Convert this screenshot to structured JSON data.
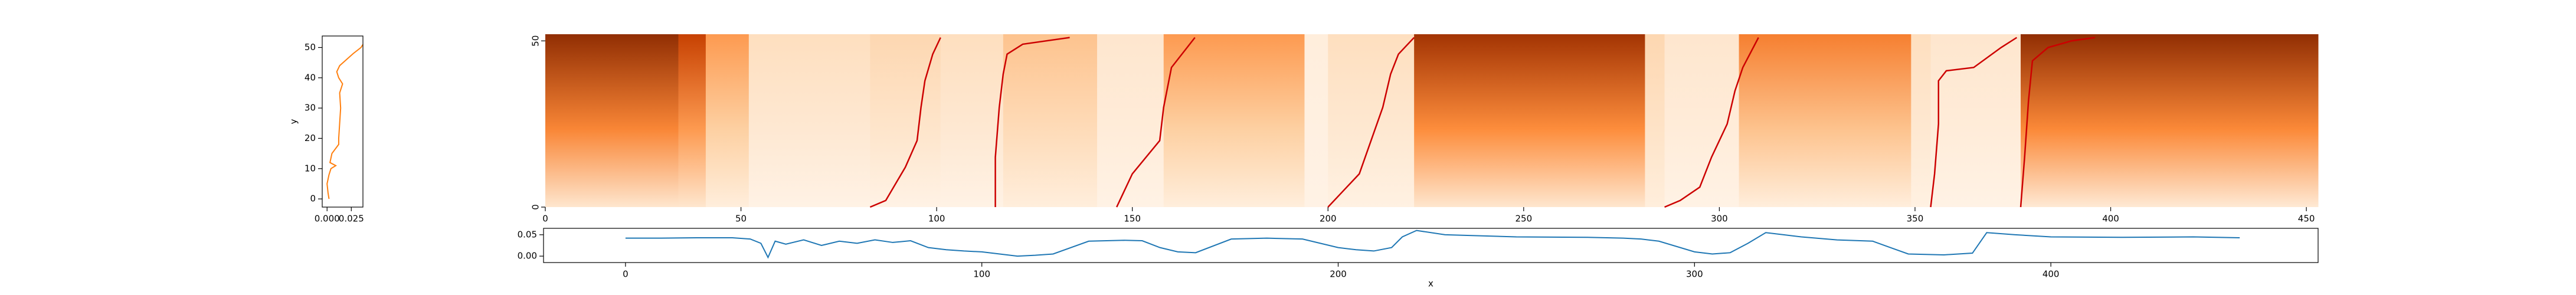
{
  "chart_data": [
    {
      "type": "profile",
      "ylabel": "y",
      "xlim": [
        -0.005,
        0.037
      ],
      "ylim": [
        -2.7,
        53.8
      ],
      "xticks": [
        {
          "value": 0,
          "label": "0.000"
        },
        {
          "value": 0.025,
          "label": "0.025"
        }
      ],
      "yticks": [
        0,
        10,
        20,
        30,
        40,
        50
      ],
      "series": [
        {
          "color": "#ff7f0e",
          "y": [
            0,
            2,
            5,
            8,
            10,
            11,
            12,
            15,
            18,
            20,
            25,
            30,
            35,
            38,
            40,
            42,
            44,
            46,
            48,
            50,
            51
          ],
          "values": [
            0.002,
            0.001,
            0.0,
            0.002,
            0.004,
            0.009,
            0.003,
            0.005,
            0.012,
            0.012,
            0.013,
            0.014,
            0.013,
            0.016,
            0.012,
            0.01,
            0.013,
            0.02,
            0.027,
            0.035,
            0.037
          ]
        }
      ]
    },
    {
      "type": "heatmap",
      "xlim": [
        0,
        453
      ],
      "ylim": [
        0,
        52
      ],
      "xticks": [
        0,
        50,
        100,
        150,
        200,
        250,
        300,
        350,
        400,
        450
      ],
      "yticks": [
        0,
        50
      ],
      "colormap": [
        "#fff5eb",
        "#fdd0a2",
        "#fd8d3c",
        "#d94801",
        "#7f2704"
      ],
      "blocks": [
        {
          "x0": 0,
          "x1": 34,
          "top": 0.95,
          "bottom": 0.1
        },
        {
          "x0": 34,
          "x1": 41,
          "top": 0.8,
          "bottom": 0.1
        },
        {
          "x0": 41,
          "x1": 52,
          "top": 0.45,
          "bottom": 0.05
        },
        {
          "x0": 52,
          "x1": 83,
          "top": 0.15,
          "bottom": 0.02
        },
        {
          "x0": 83,
          "x1": 101,
          "top": 0.2,
          "bottom": 0.02
        },
        {
          "x0": 101,
          "x1": 117,
          "top": 0.15,
          "bottom": 0.02
        },
        {
          "x0": 117,
          "x1": 141,
          "top": 0.3,
          "bottom": 0.05
        },
        {
          "x0": 141,
          "x1": 146,
          "top": 0.1,
          "bottom": 0.02
        },
        {
          "x0": 146,
          "x1": 158,
          "top": 0.1,
          "bottom": 0.02
        },
        {
          "x0": 158,
          "x1": 194,
          "top": 0.45,
          "bottom": 0.05
        },
        {
          "x0": 194,
          "x1": 200,
          "top": 0.05,
          "bottom": 0.02
        },
        {
          "x0": 200,
          "x1": 222,
          "top": 0.15,
          "bottom": 0.03
        },
        {
          "x0": 222,
          "x1": 281,
          "top": 0.9,
          "bottom": 0.1
        },
        {
          "x0": 281,
          "x1": 286,
          "top": 0.2,
          "bottom": 0.05
        },
        {
          "x0": 286,
          "x1": 305,
          "top": 0.1,
          "bottom": 0.02
        },
        {
          "x0": 305,
          "x1": 349,
          "top": 0.55,
          "bottom": 0.05
        },
        {
          "x0": 349,
          "x1": 354,
          "top": 0.15,
          "bottom": 0.03
        },
        {
          "x0": 354,
          "x1": 377,
          "top": 0.1,
          "bottom": 0.02
        },
        {
          "x0": 377,
          "x1": 453,
          "top": 0.95,
          "bottom": 0.08
        }
      ],
      "paths": [
        {
          "color": "#cc0000",
          "x": [
            83,
            87,
            90,
            92,
            95,
            96,
            97,
            99,
            101
          ],
          "y": [
            0,
            2,
            8,
            12,
            20,
            30,
            38,
            46,
            51
          ]
        },
        {
          "color": "#cc0000",
          "x": [
            115,
            115,
            116,
            117,
            118,
            122,
            134
          ],
          "y": [
            0,
            15,
            30,
            40,
            46,
            49,
            51
          ]
        },
        {
          "color": "#cc0000",
          "x": [
            146,
            148,
            150,
            157,
            158,
            160,
            166
          ],
          "y": [
            0,
            5,
            10,
            20,
            30,
            42,
            51
          ]
        },
        {
          "color": "#cc0000",
          "x": [
            200,
            204,
            208,
            211,
            214,
            216,
            218,
            222
          ],
          "y": [
            0,
            5,
            10,
            20,
            30,
            40,
            46,
            51
          ]
        },
        {
          "color": "#cc0000",
          "x": [
            286,
            290,
            295,
            298,
            302,
            304,
            306,
            310
          ],
          "y": [
            0,
            2,
            6,
            15,
            25,
            35,
            42,
            51
          ]
        },
        {
          "color": "#cc0000",
          "x": [
            354,
            355,
            356,
            356,
            358,
            365,
            372,
            376
          ],
          "y": [
            0,
            10,
            25,
            38,
            41,
            42,
            48,
            51
          ]
        },
        {
          "color": "#cc0000",
          "x": [
            377,
            378,
            379,
            380,
            384,
            390,
            396
          ],
          "y": [
            0,
            15,
            32,
            44,
            48,
            50,
            51
          ]
        }
      ]
    },
    {
      "type": "line",
      "xlabel": "x",
      "xlim": [
        -23,
        475
      ],
      "ylim": [
        -0.015,
        0.065
      ],
      "xticks": [
        0,
        100,
        200,
        300,
        400
      ],
      "yticks": [
        {
          "value": 0,
          "label": "0.00"
        },
        {
          "value": 0.05,
          "label": "0.05"
        }
      ],
      "series": [
        {
          "color": "#1f77b4",
          "x": [
            0,
            10,
            20,
            30,
            35,
            38,
            40,
            42,
            45,
            50,
            55,
            60,
            65,
            70,
            75,
            80,
            85,
            90,
            95,
            100,
            105,
            110,
            115,
            120,
            130,
            140,
            145,
            150,
            155,
            160,
            170,
            180,
            190,
            195,
            200,
            205,
            210,
            215,
            218,
            222,
            230,
            250,
            270,
            280,
            285,
            290,
            300,
            305,
            310,
            315,
            320,
            325,
            330,
            340,
            350,
            355,
            360,
            370,
            378,
            382,
            390,
            400,
            420,
            440,
            453
          ],
          "values": [
            0.042,
            0.042,
            0.043,
            0.043,
            0.04,
            0.03,
            -0.003,
            0.035,
            0.028,
            0.038,
            0.025,
            0.035,
            0.03,
            0.038,
            0.032,
            0.036,
            0.02,
            0.015,
            0.012,
            0.01,
            0.005,
            0.0,
            0.002,
            0.005,
            0.035,
            0.037,
            0.036,
            0.02,
            0.01,
            0.008,
            0.04,
            0.042,
            0.04,
            0.03,
            0.02,
            0.015,
            0.012,
            0.02,
            0.045,
            0.06,
            0.05,
            0.045,
            0.044,
            0.042,
            0.04,
            0.035,
            0.01,
            0.005,
            0.008,
            0.03,
            0.055,
            0.05,
            0.045,
            0.038,
            0.035,
            0.02,
            0.005,
            0.003,
            0.007,
            0.055,
            0.05,
            0.045,
            0.044,
            0.045,
            0.043
          ]
        }
      ]
    }
  ]
}
